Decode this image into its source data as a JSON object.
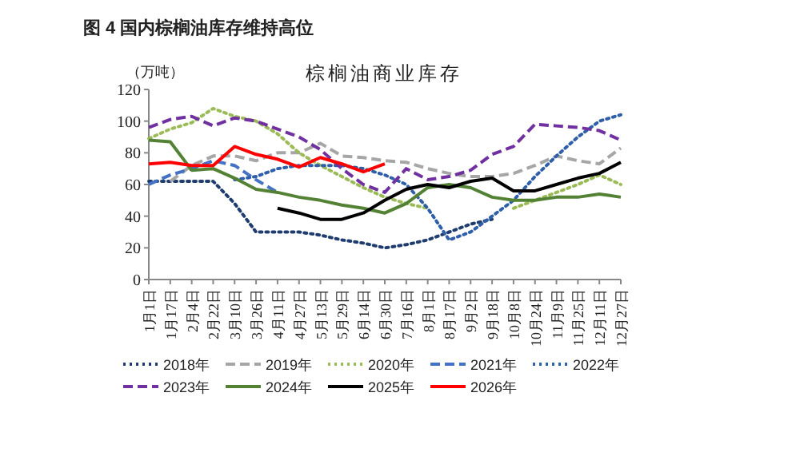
{
  "chart_data": {
    "type": "line",
    "title": "图 4 国内棕榈油库存维持高位",
    "subtitle": "棕榈油商业库存",
    "ylabel": "（万吨）",
    "categories": [
      "1月1日",
      "1月17日",
      "2月4日",
      "2月22日",
      "3月10日",
      "3月26日",
      "4月11日",
      "4月27日",
      "5月13日",
      "5月29日",
      "6月14日",
      "6月30日",
      "7月16日",
      "8月1日",
      "8月17日",
      "9月2日",
      "9月18日",
      "10月8日",
      "10月24日",
      "11月9日",
      "11月25日",
      "12月11日",
      "12月27日"
    ],
    "ylim": [
      0,
      120
    ],
    "yticks": [
      0,
      20,
      40,
      60,
      80,
      100,
      120
    ],
    "legend": "bottom",
    "series": [
      {
        "name": "2018年",
        "color": "#1f3c6e",
        "line_style": "dotted",
        "values": [
          62,
          62,
          62,
          62,
          48,
          30,
          30,
          30,
          28,
          25,
          23,
          20,
          22,
          25,
          30,
          35,
          38,
          null,
          null,
          null,
          null,
          null,
          null
        ]
      },
      {
        "name": "2019年",
        "color": "#a6a6a6",
        "line_style": "dashed",
        "values": [
          null,
          62,
          72,
          78,
          78,
          75,
          80,
          80,
          86,
          78,
          77,
          75,
          74,
          70,
          67,
          65,
          65,
          67,
          72,
          78,
          75,
          73,
          83
        ]
      },
      {
        "name": "2020年",
        "color": "#9bbb59",
        "line_style": "dotted",
        "values": [
          89,
          95,
          99,
          108,
          103,
          100,
          92,
          80,
          72,
          65,
          58,
          52,
          48,
          45,
          null,
          null,
          null,
          45,
          50,
          55,
          60,
          66,
          60
        ]
      },
      {
        "name": "2021年",
        "color": "#4472c4",
        "line_style": "dashed",
        "values": [
          60,
          66,
          70,
          75,
          72,
          63,
          55,
          null,
          null,
          null,
          null,
          null,
          null,
          null,
          null,
          null,
          null,
          null,
          null,
          null,
          null,
          null,
          null
        ]
      },
      {
        "name": "2022年",
        "color": "#2e5fa8",
        "line_style": "dotted",
        "values": [
          null,
          null,
          null,
          null,
          63,
          65,
          70,
          72,
          72,
          72,
          70,
          66,
          60,
          45,
          25,
          30,
          40,
          50,
          65,
          78,
          90,
          100,
          104
        ]
      },
      {
        "name": "2023年",
        "color": "#7030a0",
        "line_style": "dashed",
        "values": [
          96,
          101,
          103,
          97,
          102,
          100,
          95,
          90,
          82,
          70,
          60,
          55,
          70,
          63,
          65,
          69,
          79,
          84,
          98,
          97,
          96,
          94,
          88
        ]
      },
      {
        "name": "2024年",
        "color": "#548235",
        "line_style": "solid",
        "values": [
          88,
          87,
          69,
          70,
          64,
          57,
          55,
          52,
          50,
          47,
          45,
          42,
          48,
          58,
          60,
          58,
          52,
          50,
          50,
          52,
          52,
          54,
          52
        ]
      },
      {
        "name": "2025年",
        "color": "#000000",
        "line_style": "solid",
        "values": [
          null,
          null,
          null,
          null,
          null,
          null,
          45,
          42,
          38,
          38,
          42,
          50,
          57,
          60,
          58,
          62,
          64,
          56,
          56,
          60,
          64,
          67,
          74
        ]
      },
      {
        "name": "2026年",
        "color": "#ff0000",
        "line_style": "solid",
        "values": [
          73,
          74,
          72,
          72,
          84,
          79,
          76,
          71,
          77,
          73,
          68,
          73,
          null,
          null,
          null,
          null,
          null,
          null,
          null,
          null,
          null,
          null,
          null
        ]
      }
    ]
  }
}
